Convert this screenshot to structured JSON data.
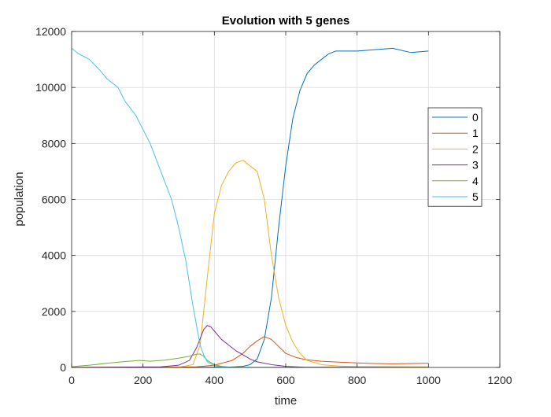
{
  "chart_data": {
    "type": "line",
    "title": "Evolution with 5 genes",
    "xlabel": "time",
    "ylabel": "population",
    "xlim": [
      0,
      1200
    ],
    "ylim": [
      0,
      12000
    ],
    "xticks": [
      0,
      200,
      400,
      600,
      800,
      1000,
      1200
    ],
    "yticks": [
      0,
      2000,
      4000,
      6000,
      8000,
      10000,
      12000
    ],
    "grid": true,
    "legend_position": "right",
    "series": [
      {
        "name": "0",
        "color": "#0072BD",
        "x": [
          0,
          300,
          440,
          480,
          500,
          520,
          540,
          560,
          580,
          600,
          620,
          640,
          660,
          680,
          700,
          720,
          740,
          760,
          800,
          850,
          900,
          950,
          1000
        ],
        "y": [
          0,
          0,
          10,
          40,
          100,
          300,
          1000,
          2500,
          5000,
          7200,
          8900,
          9900,
          10500,
          10800,
          11000,
          11200,
          11300,
          11300,
          11300,
          11350,
          11400,
          11250,
          11300
        ]
      },
      {
        "name": "1",
        "color": "#D95319",
        "x": [
          0,
          200,
          350,
          400,
          450,
          480,
          500,
          520,
          540,
          560,
          580,
          600,
          630,
          660,
          700,
          750,
          800,
          850,
          900,
          950,
          1000
        ],
        "y": [
          0,
          5,
          20,
          80,
          250,
          500,
          750,
          950,
          1100,
          1000,
          750,
          500,
          350,
          270,
          220,
          190,
          160,
          140,
          130,
          140,
          150
        ]
      },
      {
        "name": "2",
        "color": "#EDB120",
        "x": [
          0,
          300,
          340,
          360,
          380,
          400,
          420,
          440,
          460,
          480,
          500,
          520,
          540,
          560,
          580,
          600,
          620,
          640,
          660,
          700,
          750,
          800,
          1000
        ],
        "y": [
          0,
          10,
          100,
          800,
          3200,
          5500,
          6500,
          7000,
          7300,
          7400,
          7200,
          7000,
          6000,
          4000,
          2500,
          1500,
          900,
          500,
          250,
          100,
          50,
          30,
          20
        ]
      },
      {
        "name": "3",
        "color": "#7E2F8E",
        "x": [
          0,
          250,
          300,
          330,
          350,
          370,
          380,
          390,
          400,
          420,
          440,
          460,
          480,
          500,
          520,
          540,
          560,
          580,
          600,
          650,
          1000
        ],
        "y": [
          0,
          20,
          80,
          250,
          700,
          1350,
          1500,
          1450,
          1300,
          1000,
          800,
          600,
          450,
          300,
          200,
          150,
          100,
          70,
          40,
          10,
          0
        ]
      },
      {
        "name": "4",
        "color": "#77AC30",
        "x": [
          0,
          20,
          50,
          100,
          150,
          190,
          220,
          260,
          300,
          330,
          350,
          360,
          370,
          380,
          400,
          420,
          440,
          500,
          1000
        ],
        "y": [
          20,
          50,
          80,
          150,
          210,
          250,
          220,
          260,
          330,
          400,
          470,
          480,
          400,
          250,
          100,
          40,
          15,
          5,
          0
        ]
      },
      {
        "name": "5",
        "color": "#4DBEEE",
        "x": [
          0,
          20,
          50,
          80,
          100,
          130,
          150,
          180,
          200,
          220,
          250,
          280,
          300,
          320,
          340,
          350,
          360,
          370,
          380,
          400,
          420,
          450,
          500,
          1000
        ],
        "y": [
          11400,
          11200,
          11000,
          10600,
          10300,
          10000,
          9500,
          9000,
          8500,
          8000,
          7000,
          6000,
          5000,
          3800,
          2200,
          1500,
          800,
          450,
          200,
          60,
          20,
          5,
          0,
          0
        ]
      }
    ]
  }
}
